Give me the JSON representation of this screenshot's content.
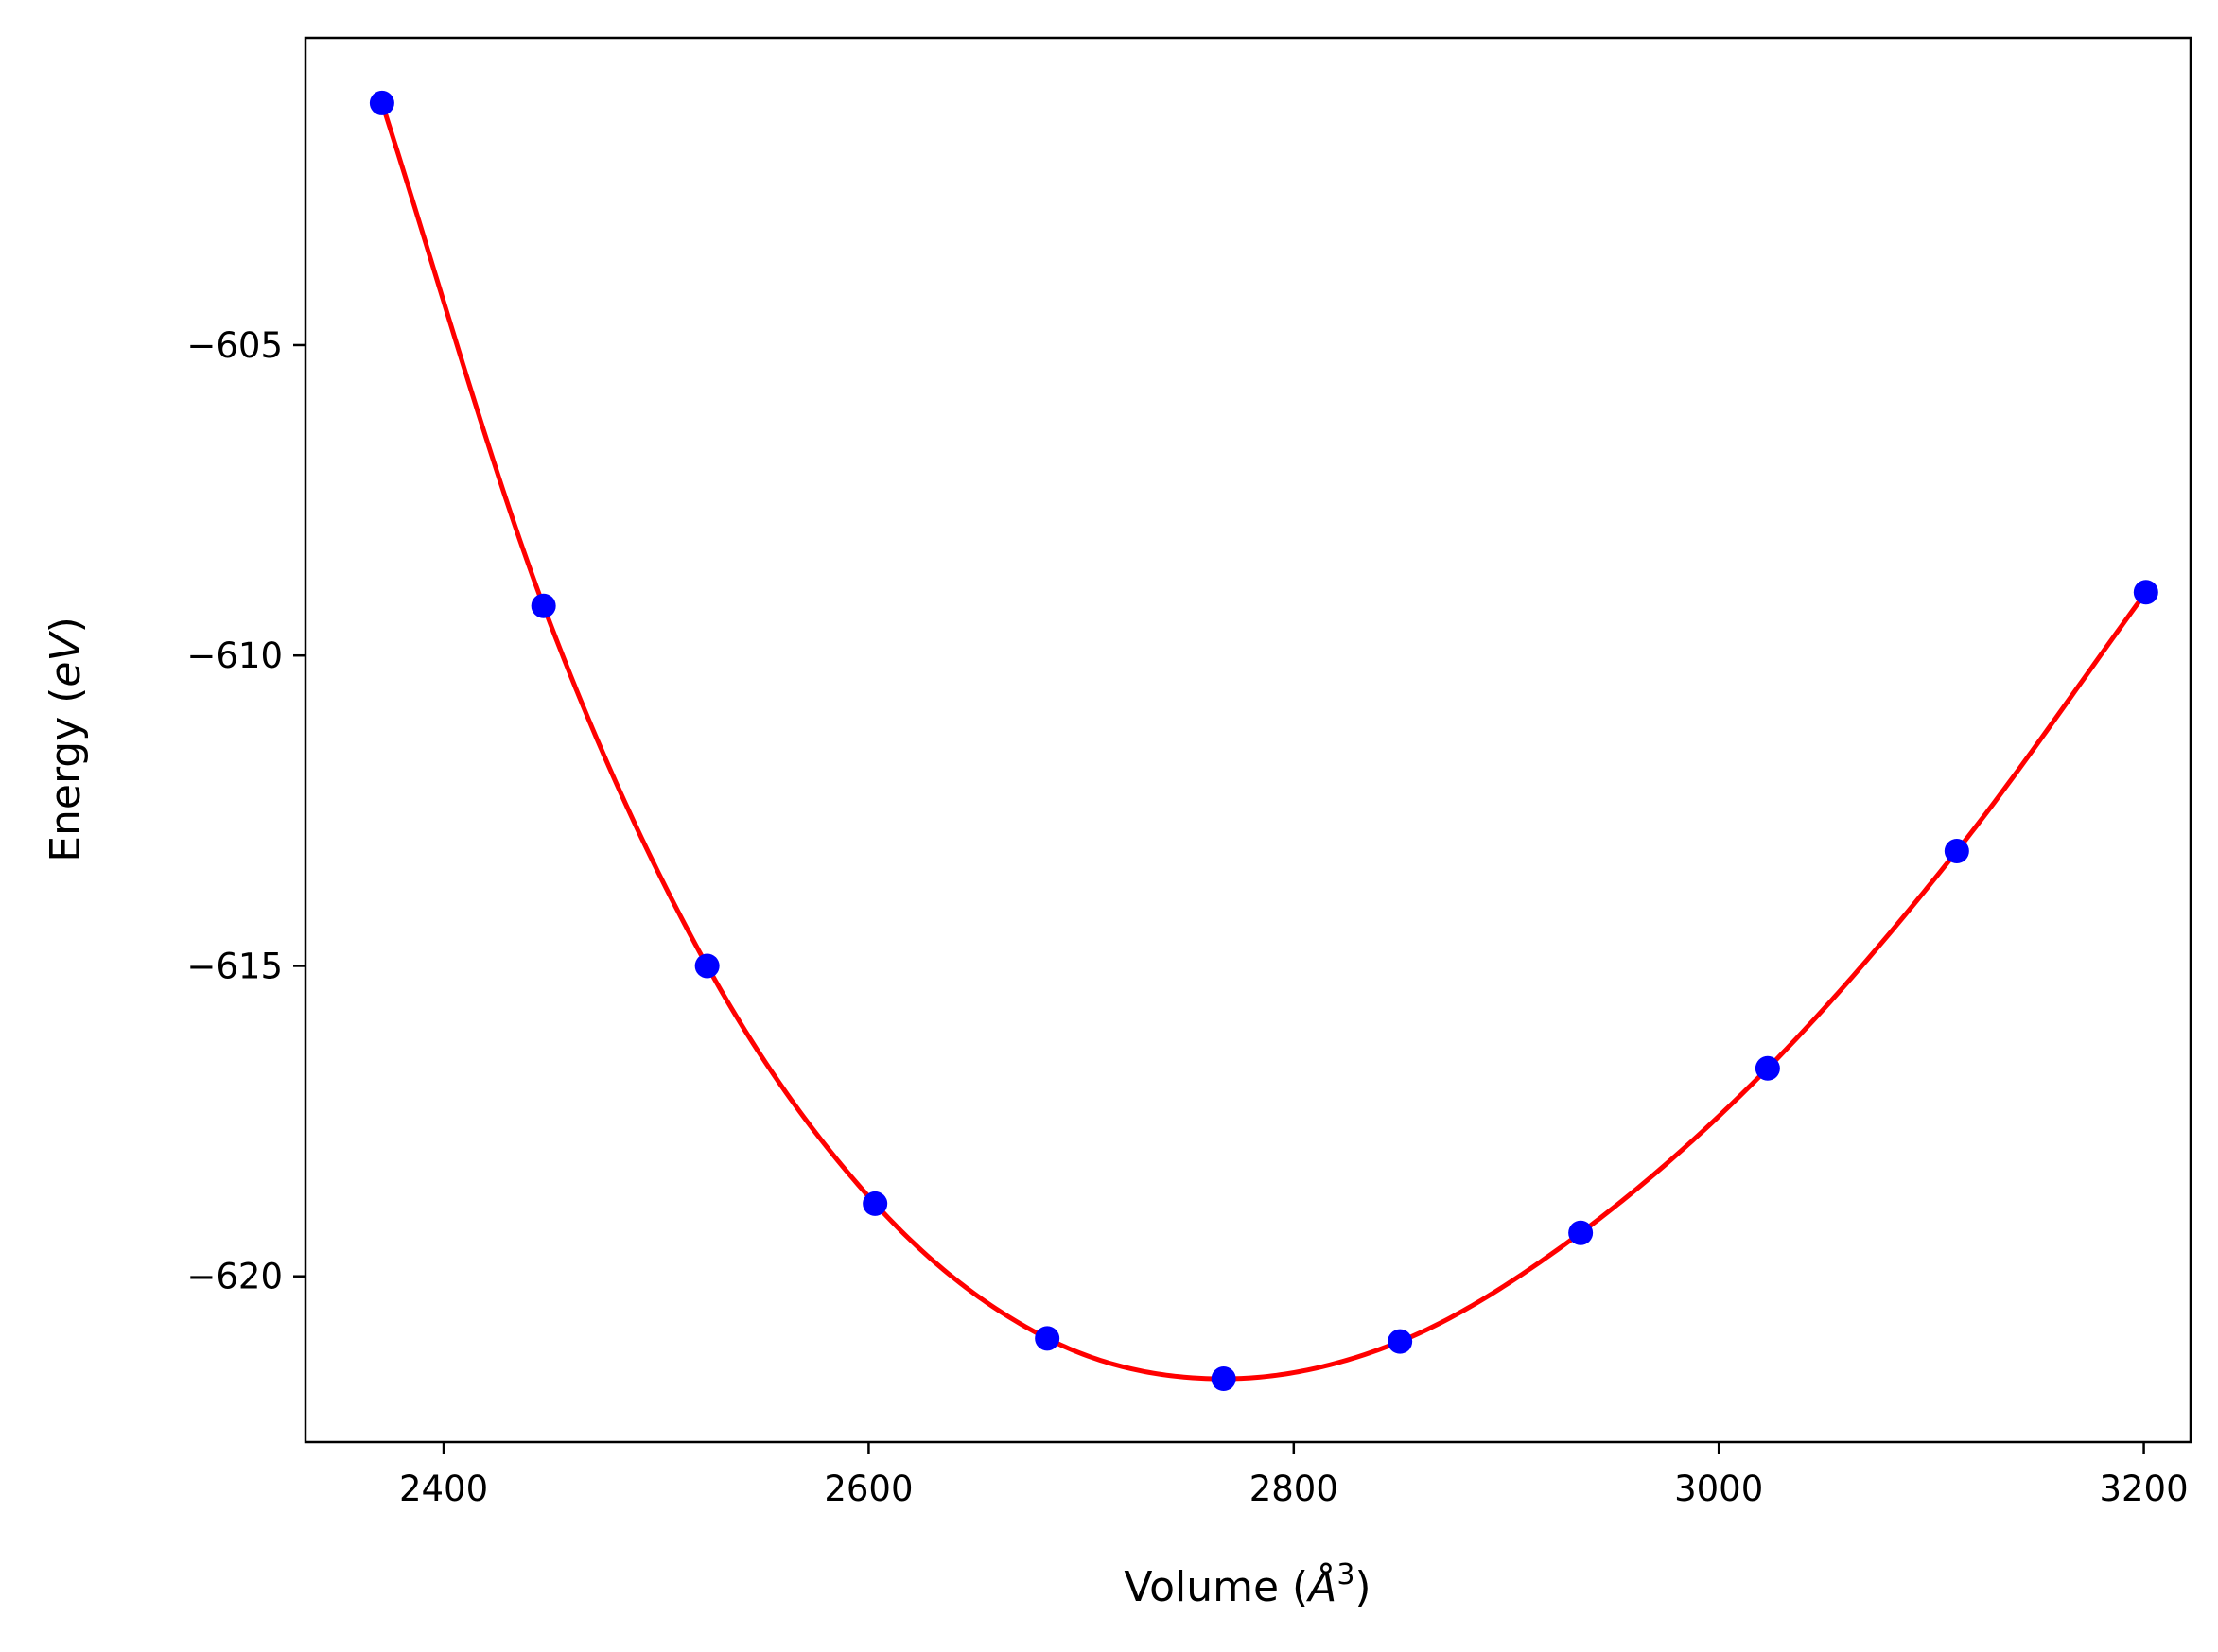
{
  "chart_data": {
    "type": "scatter",
    "xlabel": {
      "main": "Volume (",
      "symbol": "Å",
      "sup": "3",
      "close": ")"
    },
    "ylabel": {
      "main": "Energy (",
      "unit": "eV",
      "close": ")"
    },
    "xlim": [
      2335,
      3222
    ],
    "ylim": [
      -622.67,
      -600.05
    ],
    "xticks": [
      2400,
      2600,
      2800,
      3000,
      3200
    ],
    "xtick_labels": [
      "2400",
      "2600",
      "2800",
      "3000",
      "3200"
    ],
    "yticks": [
      -605,
      -610,
      -615,
      -620
    ],
    "ytick_labels": [
      "−605",
      "−610",
      "−615",
      "−620"
    ],
    "grid": false,
    "series": [
      {
        "kind": "markers",
        "color": "#0000ff",
        "x": [
          2371,
          2447,
          2524,
          2603,
          2684,
          2767,
          2850,
          2935,
          3023,
          3112,
          3201
        ],
        "y": [
          -601.1,
          -609.2,
          -615.0,
          -618.83,
          -621.0,
          -621.65,
          -621.05,
          -619.3,
          -616.65,
          -613.15,
          -608.98
        ]
      },
      {
        "kind": "fit-line",
        "color": "#ff0000",
        "x": [
          2371,
          2447,
          2524,
          2603,
          2684,
          2767,
          2850,
          2935,
          3023,
          3112,
          3201
        ],
        "y": [
          -601.1,
          -609.2,
          -615.0,
          -618.83,
          -621.0,
          -621.65,
          -621.05,
          -619.3,
          -616.65,
          -613.15,
          -608.98
        ]
      }
    ]
  }
}
